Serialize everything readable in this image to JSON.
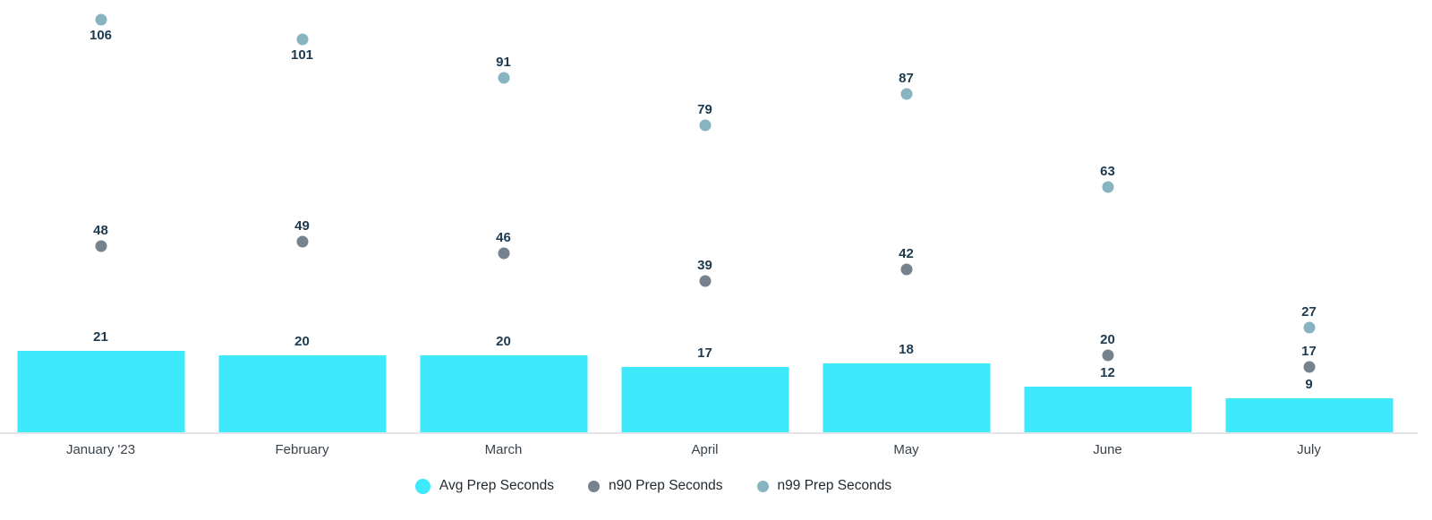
{
  "chart_data": {
    "type": "bar",
    "title": "",
    "xlabel": "",
    "ylabel": "",
    "categories": [
      "January '23",
      "February",
      "March",
      "April",
      "May",
      "June",
      "July"
    ],
    "series": [
      {
        "name": "Avg Prep Seconds",
        "render": "bar",
        "color": "#3ee9fc",
        "values": [
          21,
          20,
          20,
          17,
          18,
          12,
          9
        ]
      },
      {
        "name": "n90 Prep Seconds",
        "render": "point",
        "color": "#76828d",
        "values": [
          48,
          49,
          46,
          39,
          42,
          20,
          17
        ]
      },
      {
        "name": "n99 Prep Seconds",
        "render": "point",
        "color": "#87b4c0",
        "values": [
          106,
          101,
          91,
          79,
          87,
          63,
          27
        ]
      }
    ],
    "ylim": [
      0,
      111
    ],
    "grid": false,
    "legend_position": "bottom",
    "annotation_color": "#1d3a4f",
    "axis_line_color": "#e2e4e8",
    "annotations_shown": true
  }
}
